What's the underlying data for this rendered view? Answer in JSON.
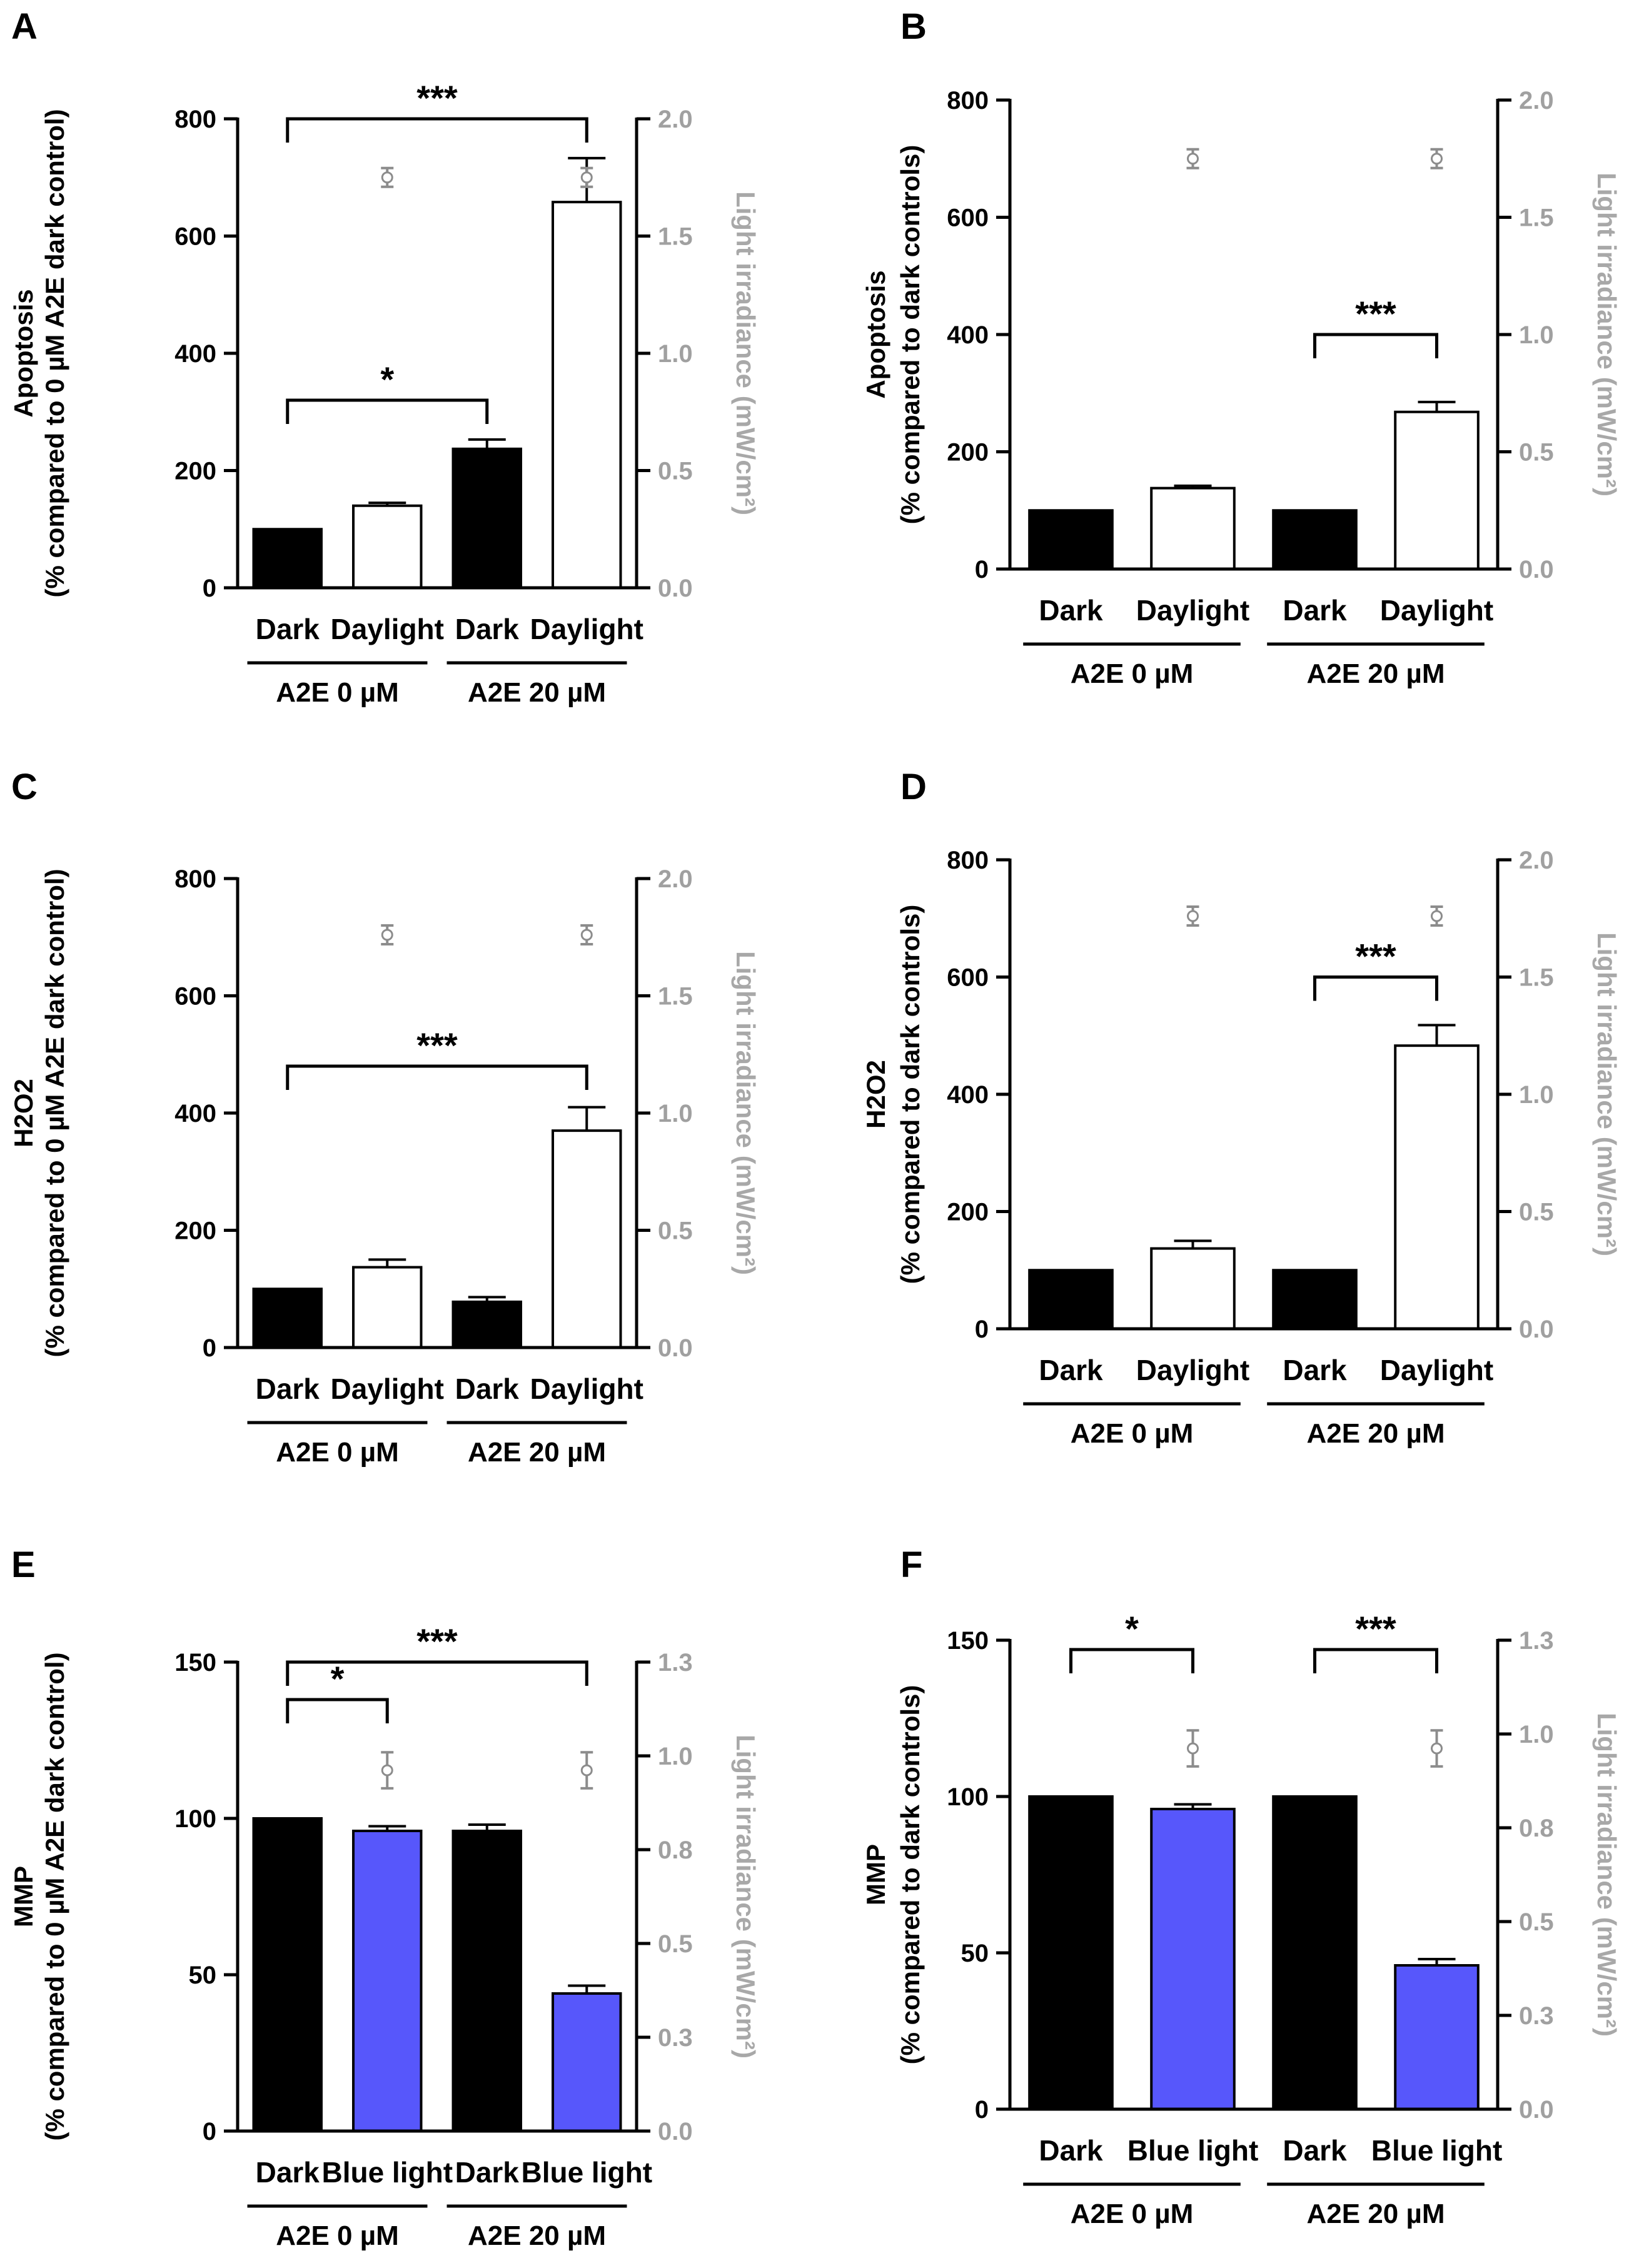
{
  "colors": {
    "dark": "#000000",
    "daylight": "#ffffff",
    "blue": "#5757fb",
    "irradiance": "#8c8c8c",
    "right_axis": "#a0a0a0"
  },
  "chart_data": [
    {
      "panel": "A",
      "type": "bar",
      "categories": [
        "Dark",
        "Daylight",
        "Dark",
        "Daylight"
      ],
      "groups": [
        "A2E 0 µM",
        "A2E 20 µM"
      ],
      "values": [
        100,
        140,
        237,
        658
      ],
      "errors": [
        0,
        5,
        16,
        75
      ],
      "fills": [
        "dark",
        "daylight",
        "dark",
        "daylight"
      ],
      "irradiance": [
        null,
        1.75,
        null,
        1.75
      ],
      "irradiance_err": [
        null,
        0.04,
        null,
        0.04
      ],
      "ylabel_line1": "Apoptosis",
      "ylabel_line2": "(% compared to 0 µM A2E dark control)",
      "ylim": [
        0,
        800
      ],
      "yticks": [
        0,
        200,
        400,
        600,
        800
      ],
      "ytick_labels": [
        "0",
        "200",
        "400",
        "600",
        "800"
      ],
      "y2label": "Light irradiance (mW/cm²)",
      "y2lim": [
        0,
        2.0
      ],
      "y2ticks": [
        0,
        0.5,
        1.0,
        1.5,
        2.0
      ],
      "y2tick_labels": [
        "0.0",
        "0.5",
        "1.0",
        "1.5",
        "2.0"
      ],
      "significance": [
        {
          "from": 0,
          "to": 3,
          "level": 800,
          "label": "***"
        },
        {
          "from": 0,
          "to": 2,
          "level": 320,
          "label": "*"
        }
      ]
    },
    {
      "panel": "B",
      "type": "bar",
      "categories": [
        "Dark",
        "Daylight",
        "Dark",
        "Daylight"
      ],
      "groups": [
        "A2E 0 µM",
        "A2E 20 µM"
      ],
      "values": [
        100,
        138,
        100,
        268
      ],
      "errors": [
        0,
        4,
        0,
        17
      ],
      "fills": [
        "dark",
        "daylight",
        "dark",
        "daylight"
      ],
      "irradiance": [
        null,
        1.75,
        null,
        1.75
      ],
      "irradiance_err": [
        null,
        0.04,
        null,
        0.04
      ],
      "ylabel_line1": "Apoptosis",
      "ylabel_line2": "(% compared to dark controls)",
      "ylim": [
        0,
        800
      ],
      "yticks": [
        0,
        200,
        400,
        600,
        800
      ],
      "ytick_labels": [
        "0",
        "200",
        "400",
        "600",
        "800"
      ],
      "y2label": "Light irradiance (mW/cm²)",
      "y2lim": [
        0,
        2.0
      ],
      "y2ticks": [
        0,
        0.5,
        1.0,
        1.5,
        2.0
      ],
      "y2tick_labels": [
        "0.0",
        "0.5",
        "1.0",
        "1.5",
        "2.0"
      ],
      "significance": [
        {
          "from": 2,
          "to": 3,
          "level": 400,
          "label": "***"
        }
      ]
    },
    {
      "panel": "C",
      "type": "bar",
      "categories": [
        "Dark",
        "Daylight",
        "Dark",
        "Daylight"
      ],
      "groups": [
        "A2E 0 µM",
        "A2E 20 µM"
      ],
      "values": [
        100,
        137,
        78,
        370
      ],
      "errors": [
        0,
        13,
        8,
        40
      ],
      "fills": [
        "dark",
        "daylight",
        "dark",
        "daylight"
      ],
      "irradiance": [
        null,
        1.76,
        null,
        1.76
      ],
      "irradiance_err": [
        null,
        0.04,
        null,
        0.04
      ],
      "ylabel_line1": "H2O2",
      "ylabel_line2": "(% compared to 0 µM A2E dark control)",
      "ylim": [
        0,
        800
      ],
      "yticks": [
        0,
        200,
        400,
        600,
        800
      ],
      "ytick_labels": [
        "0",
        "200",
        "400",
        "600",
        "800"
      ],
      "y2label": "Light irradiance (mW/cm²)",
      "y2lim": [
        0,
        2.0
      ],
      "y2ticks": [
        0,
        0.5,
        1.0,
        1.5,
        2.0
      ],
      "y2tick_labels": [
        "0.0",
        "0.5",
        "1.0",
        "1.5",
        "2.0"
      ],
      "significance": [
        {
          "from": 0,
          "to": 3,
          "level": 480,
          "label": "***"
        }
      ]
    },
    {
      "panel": "D",
      "type": "bar",
      "categories": [
        "Dark",
        "Daylight",
        "Dark",
        "Daylight"
      ],
      "groups": [
        "A2E 0 µM",
        "A2E 20 µM"
      ],
      "values": [
        100,
        137,
        100,
        483
      ],
      "errors": [
        0,
        13,
        0,
        35
      ],
      "fills": [
        "dark",
        "daylight",
        "dark",
        "daylight"
      ],
      "irradiance": [
        null,
        1.76,
        null,
        1.76
      ],
      "irradiance_err": [
        null,
        0.04,
        null,
        0.04
      ],
      "ylabel_line1": "H2O2",
      "ylabel_line2": "(% compared to dark controls)",
      "ylim": [
        0,
        800
      ],
      "yticks": [
        0,
        200,
        400,
        600,
        800
      ],
      "ytick_labels": [
        "0",
        "200",
        "400",
        "600",
        "800"
      ],
      "y2label": "Light irradiance (mW/cm²)",
      "y2lim": [
        0,
        2.0
      ],
      "y2ticks": [
        0,
        0.5,
        1.0,
        1.5,
        2.0
      ],
      "y2tick_labels": [
        "0.0",
        "0.5",
        "1.0",
        "1.5",
        "2.0"
      ],
      "significance": [
        {
          "from": 2,
          "to": 3,
          "level": 600,
          "label": "***"
        }
      ]
    },
    {
      "panel": "E",
      "type": "bar",
      "categories": [
        "Dark",
        "Blue light",
        "Dark",
        "Blue light"
      ],
      "groups": [
        "A2E 0 µM",
        "A2E 20 µM"
      ],
      "values": [
        100,
        96,
        96,
        44
      ],
      "errors": [
        0,
        1.5,
        2,
        2.5
      ],
      "fills": [
        "dark",
        "blue",
        "dark",
        "blue"
      ],
      "irradiance": [
        null,
        1.0,
        null,
        1.0
      ],
      "irradiance_err": [
        null,
        0.05,
        null,
        0.05
      ],
      "ylabel_line1": "MMP",
      "ylabel_line2": "(% compared to 0 µM A2E dark control)",
      "ylim": [
        0,
        150
      ],
      "yticks": [
        0,
        50,
        100,
        150
      ],
      "ytick_labels": [
        "0",
        "50",
        "100",
        "150"
      ],
      "y2label": "Light irradiance (mW/cm²)",
      "y2lim": [
        0,
        1.3
      ],
      "y2ticks": [
        0,
        0.26,
        0.52,
        0.78,
        1.04,
        1.3
      ],
      "y2tick_labels": [
        "0.0",
        "0.3",
        "0.5",
        "0.8",
        "1.0",
        "1.3"
      ],
      "significance": [
        {
          "from": 0,
          "to": 3,
          "level": 150,
          "label": "***"
        },
        {
          "from": 0,
          "to": 1,
          "level": 138,
          "label": "*"
        }
      ]
    },
    {
      "panel": "F",
      "type": "bar",
      "categories": [
        "Dark",
        "Blue light",
        "Dark",
        "Blue light"
      ],
      "groups": [
        "A2E 0 µM",
        "A2E 20 µM"
      ],
      "values": [
        100,
        96,
        100,
        46
      ],
      "errors": [
        0,
        1.5,
        0,
        2
      ],
      "fills": [
        "dark",
        "blue",
        "dark",
        "blue"
      ],
      "irradiance": [
        null,
        1.0,
        null,
        1.0
      ],
      "irradiance_err": [
        null,
        0.05,
        null,
        0.05
      ],
      "ylabel_line1": "MMP",
      "ylabel_line2": "(% compared to dark controls)",
      "ylim": [
        0,
        150
      ],
      "yticks": [
        0,
        50,
        100,
        150
      ],
      "ytick_labels": [
        "0",
        "50",
        "100",
        "150"
      ],
      "y2label": "Light irradiance (mW/cm²)",
      "y2lim": [
        0,
        1.3
      ],
      "y2ticks": [
        0,
        0.26,
        0.52,
        0.78,
        1.04,
        1.3
      ],
      "y2tick_labels": [
        "0.0",
        "0.3",
        "0.5",
        "0.8",
        "1.0",
        "1.3"
      ],
      "significance": [
        {
          "from": 0,
          "to": 1,
          "level": 147,
          "label": "*"
        },
        {
          "from": 2,
          "to": 3,
          "level": 147,
          "label": "***"
        }
      ]
    }
  ]
}
